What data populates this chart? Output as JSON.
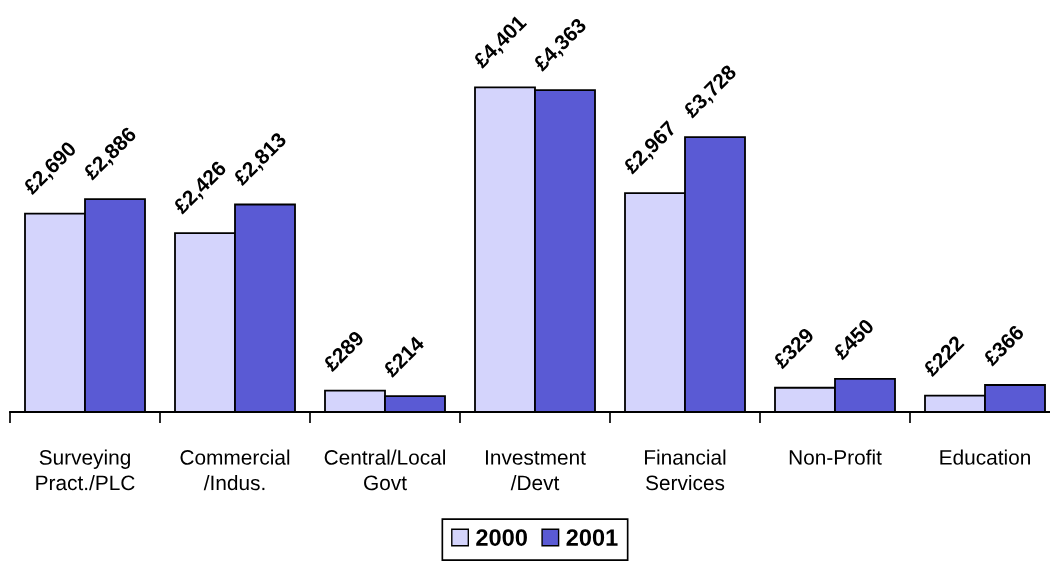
{
  "chart_data": {
    "type": "bar",
    "categories": [
      "Surveying\nPract./PLC",
      "Commercial\n/Indus.",
      "Central/Local\nGovt",
      "Investment\n/Devt",
      "Financial\nServices",
      "Non-Profit",
      "Education"
    ],
    "series": [
      {
        "name": "2000",
        "color": "#d4d4fc",
        "values": [
          2690,
          2426,
          289,
          4401,
          2967,
          329,
          222
        ],
        "value_labels": [
          "£2,690",
          "£2,426",
          "£289",
          "£4,401",
          "£2,967",
          "£329",
          "£222"
        ]
      },
      {
        "name": "2001",
        "color": "#5a5ad4",
        "values": [
          2886,
          2813,
          214,
          4363,
          3728,
          450,
          366
        ],
        "value_labels": [
          "£2,886",
          "£2,813",
          "£214",
          "£4,363",
          "£3,728",
          "£450",
          "£366"
        ]
      }
    ],
    "tick_labels": "x",
    "legend": "bottom",
    "grid": false
  }
}
